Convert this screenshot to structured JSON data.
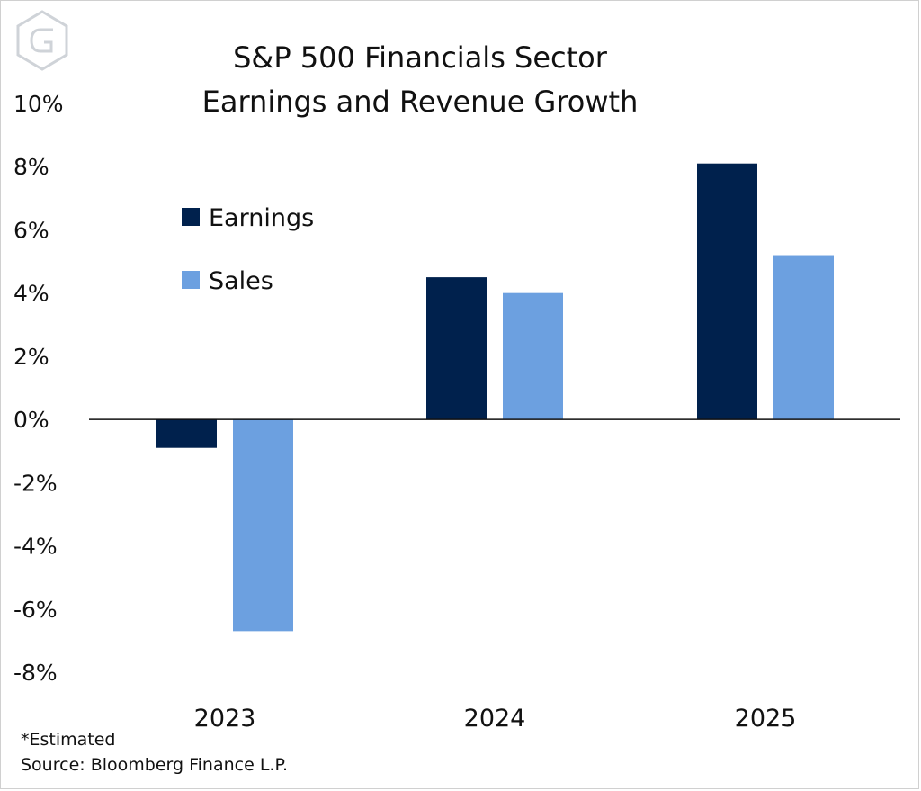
{
  "chart_data": {
    "type": "bar",
    "title": "S&P 500 Financials Sector",
    "subtitle": "Earnings and Revenue Growth",
    "categories": [
      "2023",
      "2024",
      "2025"
    ],
    "series": [
      {
        "name": "Earnings",
        "values": [
          -0.9,
          4.5,
          8.1
        ],
        "color": "#00214d"
      },
      {
        "name": "Sales",
        "values": [
          -6.7,
          4.0,
          5.2
        ],
        "color": "#6ca0e0"
      }
    ],
    "ylim": [
      -8,
      10
    ],
    "yticks": [
      10,
      8,
      6,
      4,
      2,
      0,
      -2,
      -4,
      -6,
      -8
    ],
    "ytick_labels": [
      "10%",
      "8%",
      "6%",
      "4%",
      "2%",
      "0%",
      "-2%",
      "-4%",
      "-6%",
      "-8%"
    ],
    "xlabel": "",
    "ylabel": "",
    "grid": false,
    "legend_position": "top-left",
    "footnote": "*Estimated",
    "source": "Source: Bloomberg Finance L.P."
  },
  "logo": {
    "name": "G monogram",
    "color": "#cfd3d8"
  }
}
